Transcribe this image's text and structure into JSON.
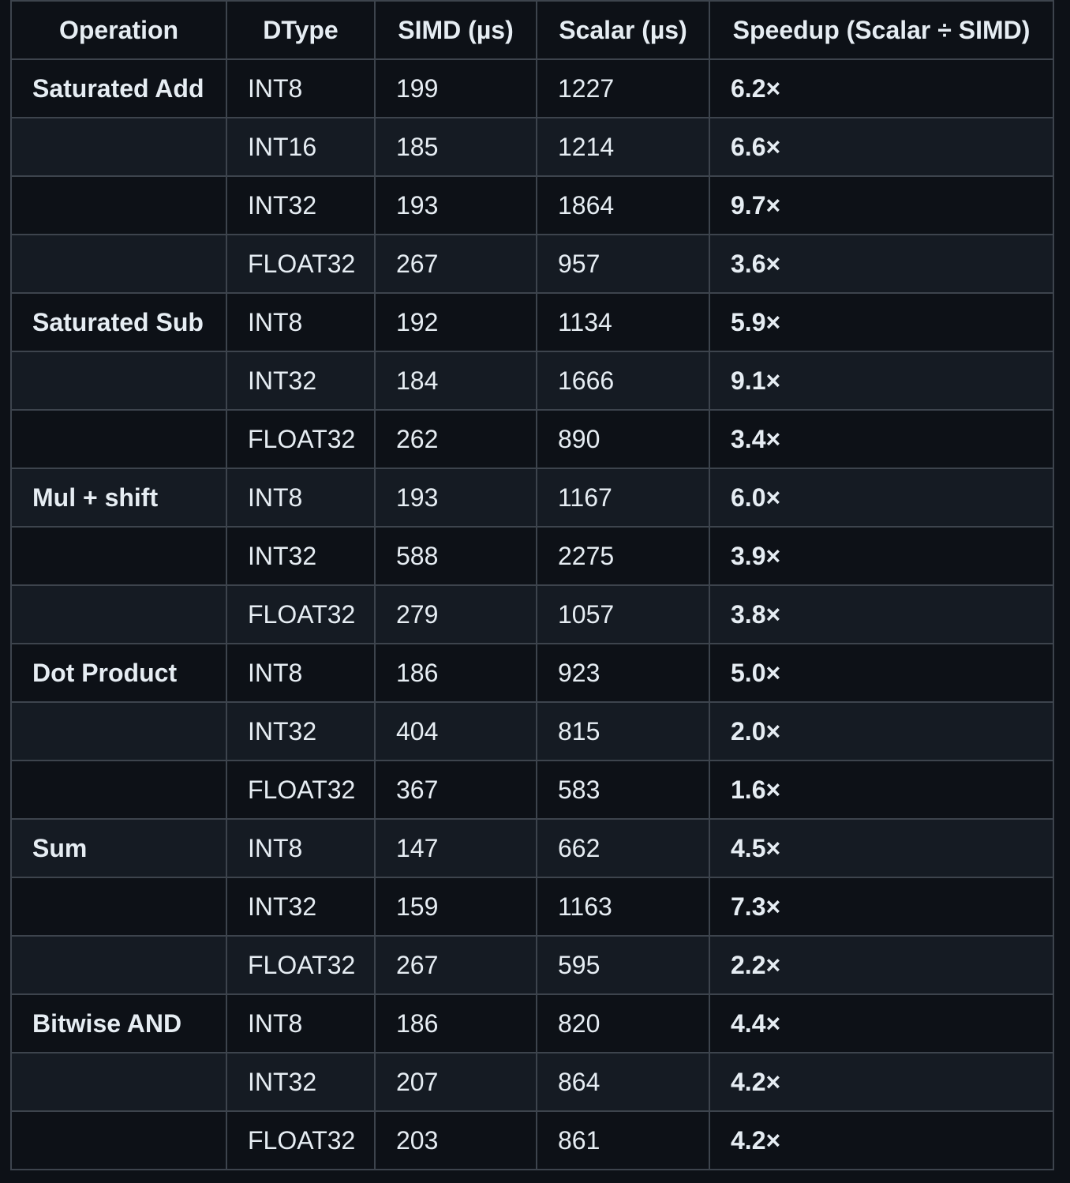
{
  "table": {
    "headers": [
      "Operation",
      "DType",
      "SIMD (µs)",
      "Scalar (µs)",
      "Speedup (Scalar ÷ SIMD)"
    ],
    "rows": [
      {
        "operation": "Saturated Add",
        "dtype": "INT8",
        "simd": "199",
        "scalar": "1227",
        "speedup": "6.2×"
      },
      {
        "operation": "",
        "dtype": "INT16",
        "simd": "185",
        "scalar": "1214",
        "speedup": "6.6×"
      },
      {
        "operation": "",
        "dtype": "INT32",
        "simd": "193",
        "scalar": "1864",
        "speedup": "9.7×"
      },
      {
        "operation": "",
        "dtype": "FLOAT32",
        "simd": "267",
        "scalar": "957",
        "speedup": "3.6×"
      },
      {
        "operation": "Saturated Sub",
        "dtype": "INT8",
        "simd": "192",
        "scalar": "1134",
        "speedup": "5.9×"
      },
      {
        "operation": "",
        "dtype": "INT32",
        "simd": "184",
        "scalar": "1666",
        "speedup": "9.1×"
      },
      {
        "operation": "",
        "dtype": "FLOAT32",
        "simd": "262",
        "scalar": "890",
        "speedup": "3.4×"
      },
      {
        "operation": "Mul + shift",
        "dtype": "INT8",
        "simd": "193",
        "scalar": "1167",
        "speedup": "6.0×"
      },
      {
        "operation": "",
        "dtype": "INT32",
        "simd": "588",
        "scalar": "2275",
        "speedup": "3.9×"
      },
      {
        "operation": "",
        "dtype": "FLOAT32",
        "simd": "279",
        "scalar": "1057",
        "speedup": "3.8×"
      },
      {
        "operation": "Dot Product",
        "dtype": "INT8",
        "simd": "186",
        "scalar": "923",
        "speedup": "5.0×"
      },
      {
        "operation": "",
        "dtype": "INT32",
        "simd": "404",
        "scalar": "815",
        "speedup": "2.0×"
      },
      {
        "operation": "",
        "dtype": "FLOAT32",
        "simd": "367",
        "scalar": "583",
        "speedup": "1.6×"
      },
      {
        "operation": "Sum",
        "dtype": "INT8",
        "simd": "147",
        "scalar": "662",
        "speedup": "4.5×"
      },
      {
        "operation": "",
        "dtype": "INT32",
        "simd": "159",
        "scalar": "1163",
        "speedup": "7.3×"
      },
      {
        "operation": "",
        "dtype": "FLOAT32",
        "simd": "267",
        "scalar": "595",
        "speedup": "2.2×"
      },
      {
        "operation": "Bitwise AND",
        "dtype": "INT8",
        "simd": "186",
        "scalar": "820",
        "speedup": "4.4×"
      },
      {
        "operation": "",
        "dtype": "INT32",
        "simd": "207",
        "scalar": "864",
        "speedup": "4.2×"
      },
      {
        "operation": "",
        "dtype": "FLOAT32",
        "simd": "203",
        "scalar": "861",
        "speedup": "4.2×"
      }
    ]
  }
}
